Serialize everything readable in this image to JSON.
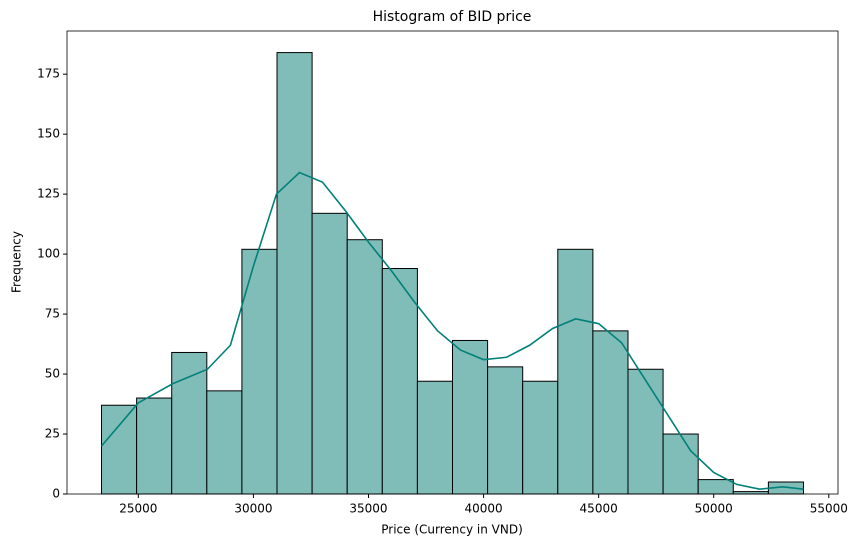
{
  "chart_data": {
    "type": "histogram",
    "title": "Histogram of BID price",
    "x_label": "Price (Currency in VND)",
    "y_label": "Frequency",
    "bins": [
      23400,
      24925,
      26450,
      27975,
      29500,
      31025,
      32550,
      34075,
      35600,
      37125,
      38650,
      40175,
      41700,
      43225,
      44750,
      46275,
      47800,
      49325,
      50850,
      52375,
      53900
    ],
    "values": [
      37,
      40,
      59,
      43,
      102,
      184,
      117,
      106,
      94,
      47,
      64,
      53,
      47,
      102,
      68,
      52,
      25,
      6,
      1,
      5
    ],
    "color": "#80bdb8",
    "edgecolor": "#000000",
    "kde": {
      "color": "#028079",
      "x": [
        23400,
        25000,
        26500,
        28000,
        29000,
        30000,
        31000,
        32000,
        33000,
        34000,
        35000,
        36000,
        37000,
        38000,
        39000,
        40000,
        41000,
        42000,
        43000,
        44000,
        45000,
        46000,
        47000,
        48000,
        49000,
        50000,
        51000,
        52000,
        53000,
        53900
      ],
      "y": [
        20,
        38,
        46,
        52,
        62,
        95,
        125,
        134,
        130,
        118,
        105,
        93,
        80,
        68,
        60,
        56,
        57,
        62,
        69,
        73,
        71,
        63,
        48,
        33,
        18,
        9,
        4,
        2,
        3,
        2
      ]
    },
    "xlim": [
      21900,
      55400
    ],
    "ylim": [
      0,
      193
    ],
    "xticks": [
      25000,
      30000,
      35000,
      40000,
      45000,
      50000,
      55000
    ],
    "yticks": [
      0,
      25,
      50,
      75,
      100,
      125,
      150,
      175
    ]
  }
}
